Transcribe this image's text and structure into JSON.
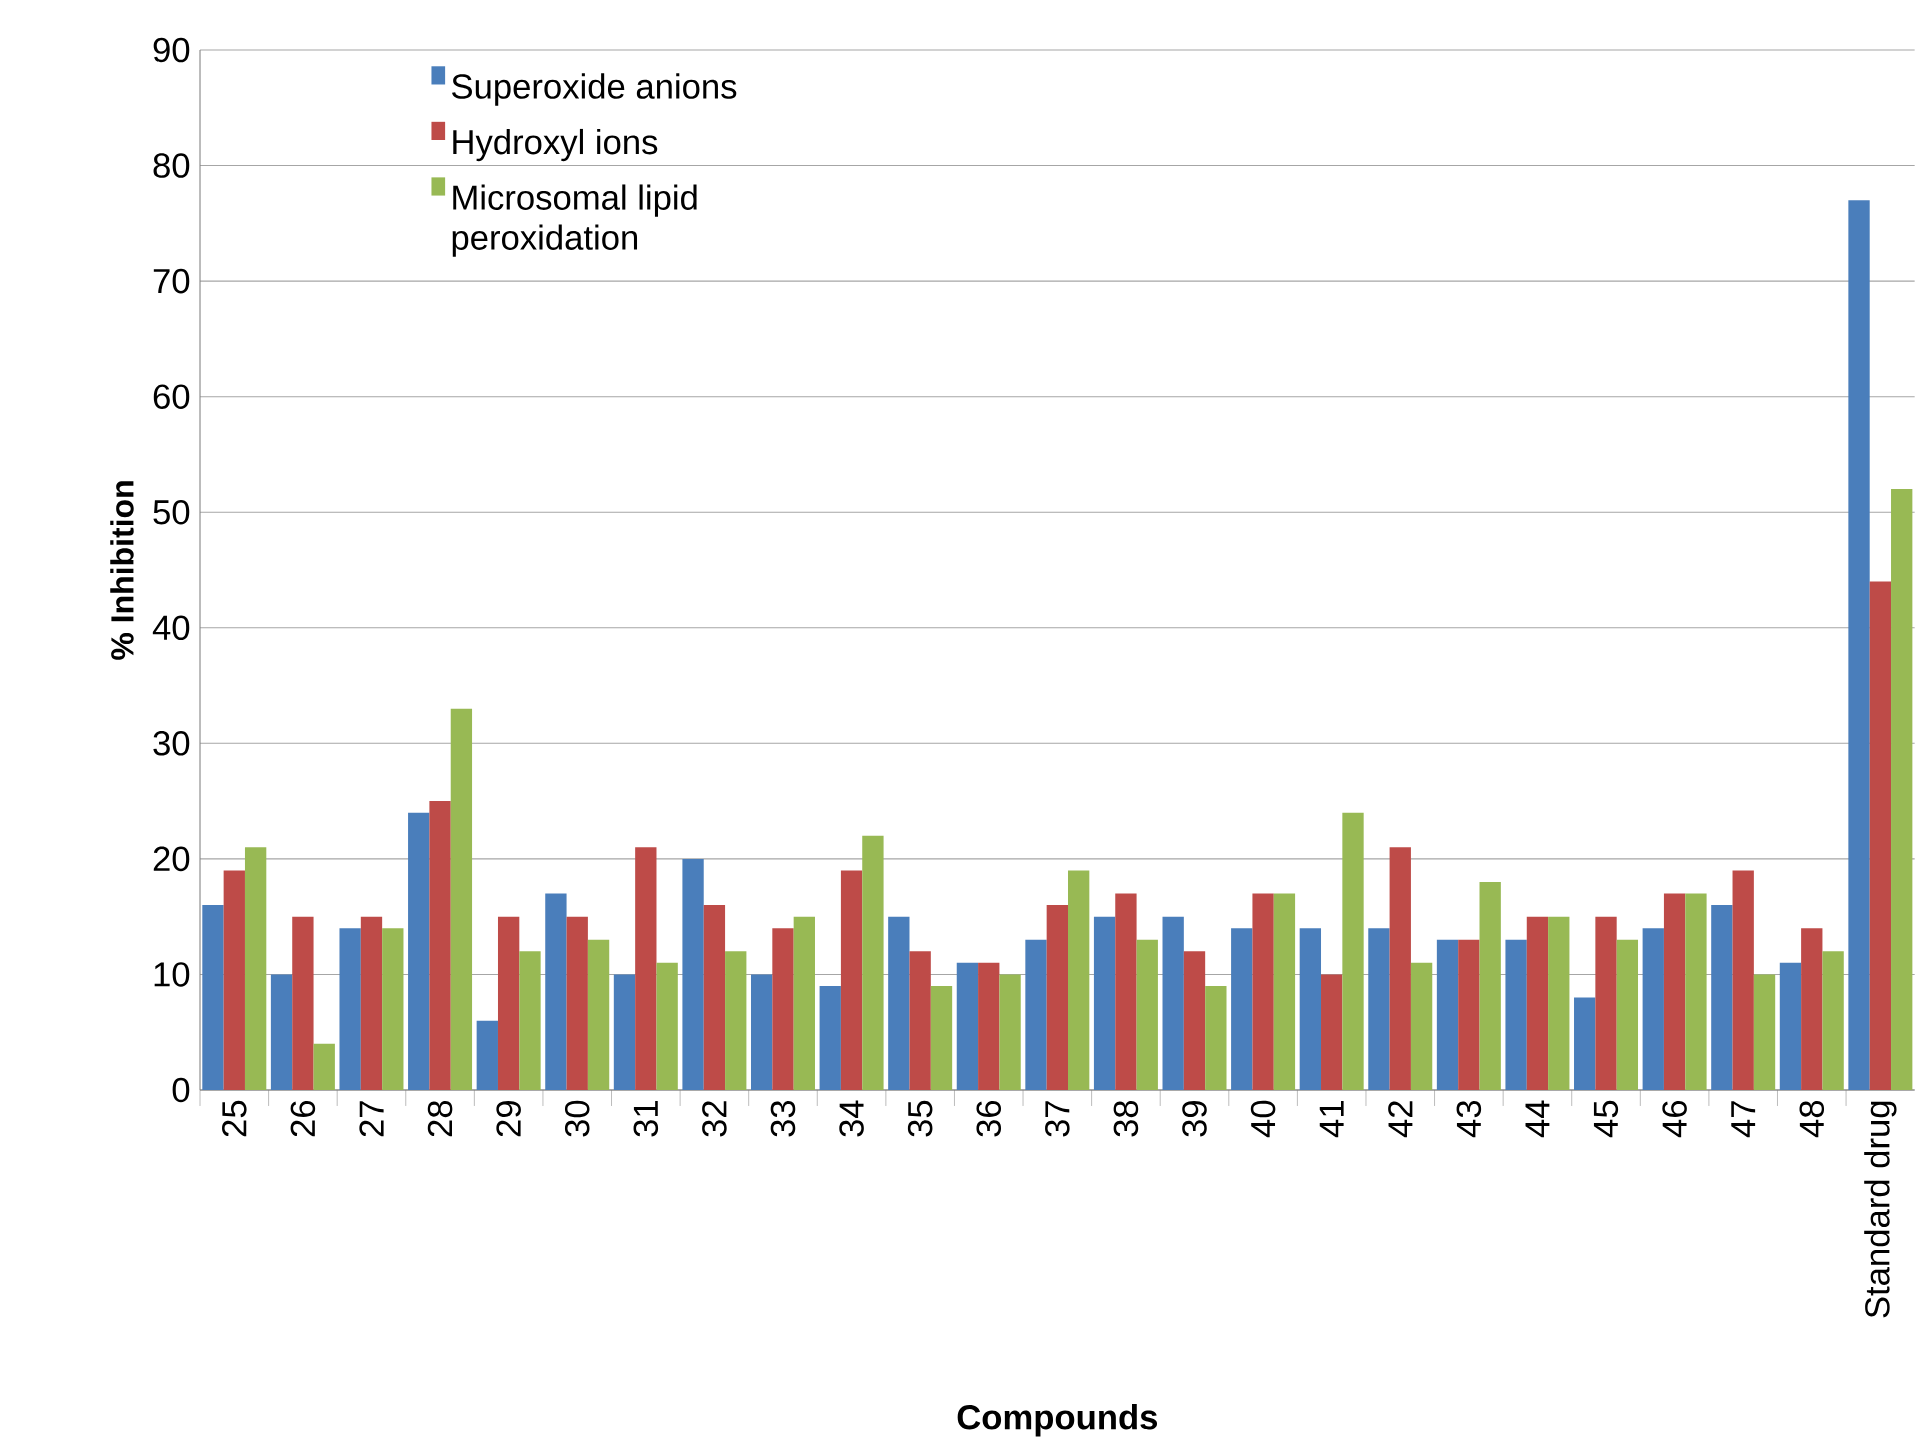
{
  "chart_data": {
    "type": "bar",
    "xlabel": "Compounds",
    "ylabel": "% Inhibition",
    "categories": [
      "25",
      "26",
      "27",
      "28",
      "29",
      "30",
      "31",
      "32",
      "33",
      "34",
      "35",
      "36",
      "37",
      "38",
      "39",
      "40",
      "41",
      "42",
      "43",
      "44",
      "45",
      "46",
      "47",
      "48",
      "Standard drug"
    ],
    "series": [
      {
        "name": "Superoxide anions",
        "color": "#4a7ebb",
        "values": [
          16,
          10,
          14,
          24,
          6,
          17,
          10,
          20,
          10,
          9,
          15,
          11,
          13,
          15,
          15,
          14,
          14,
          14,
          13,
          13,
          8,
          14,
          16,
          11,
          77
        ]
      },
      {
        "name": "Hydroxyl ions",
        "color": "#be4b48",
        "values": [
          19,
          15,
          15,
          25,
          15,
          15,
          21,
          16,
          14,
          19,
          12,
          11,
          16,
          17,
          12,
          17,
          10,
          21,
          13,
          15,
          15,
          17,
          19,
          14,
          44
        ]
      },
      {
        "name": "Microsomal lipid peroxidation",
        "color": "#98b954",
        "values": [
          21,
          4,
          14,
          33,
          12,
          13,
          11,
          12,
          15,
          22,
          9,
          10,
          19,
          13,
          9,
          17,
          24,
          11,
          18,
          15,
          13,
          17,
          10,
          12,
          52
        ]
      }
    ],
    "ylim": [
      0,
      90
    ],
    "yticks": [
      0,
      10,
      20,
      30,
      40,
      50,
      60,
      70,
      80,
      90
    ],
    "grid": "y",
    "legend": "top left"
  }
}
